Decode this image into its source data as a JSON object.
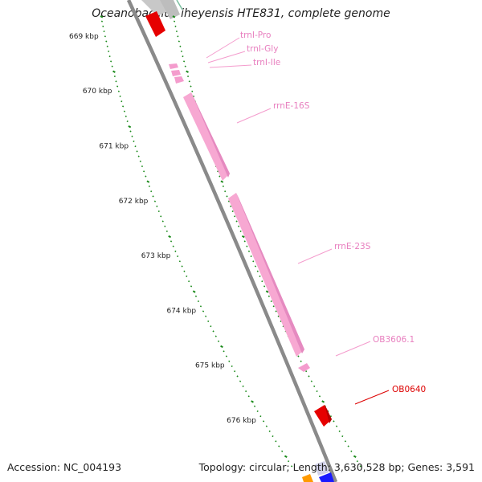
{
  "header": {
    "title": "Oceanobacillus iheyensis HTE831, complete genome"
  },
  "footer": {
    "accession": "Accession: NC_004193",
    "summary": "Topology: circular; Length: 3,630,528 bp; Genes: 3,591"
  },
  "ticks": [
    {
      "label": "669 kbp",
      "kbp": 669
    },
    {
      "label": "670 kbp",
      "kbp": 670
    },
    {
      "label": "671 kbp",
      "kbp": 671
    },
    {
      "label": "672 kbp",
      "kbp": 672
    },
    {
      "label": "673 kbp",
      "kbp": 673
    },
    {
      "label": "674 kbp",
      "kbp": 674
    },
    {
      "label": "675 kbp",
      "kbp": 675
    },
    {
      "label": "676 kbp",
      "kbp": 676
    }
  ],
  "features": [
    {
      "label": "trnI-Pro",
      "color": "#e87fbf"
    },
    {
      "label": "trnI-Gly",
      "color": "#e87fbf"
    },
    {
      "label": "trnI-Ile",
      "color": "#e87fbf"
    },
    {
      "label": "rrnE-16S",
      "color": "#e87fbf"
    },
    {
      "label": "rrnE-23S",
      "color": "#e87fbf"
    },
    {
      "label": "OB3606.1",
      "color": "#e87fbf"
    },
    {
      "label": "OB0640",
      "color": "#dd0000"
    }
  ],
  "colors": {
    "backbone": "#8a8a8a",
    "tick": "#1a8a1a",
    "rrna": "#f7a8d2",
    "cds": "#e60000"
  }
}
